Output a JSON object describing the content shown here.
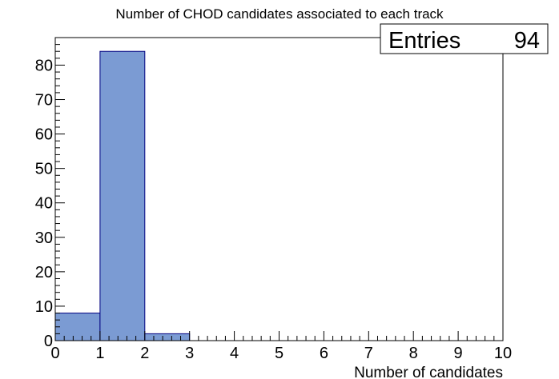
{
  "chart_data": {
    "type": "bar",
    "title": "Number of CHOD candidates associated to each track",
    "xlabel": "Number of candidates",
    "ylabel": "",
    "xlim": [
      0,
      10
    ],
    "ylim": [
      0,
      88
    ],
    "bin_edges": [
      0,
      1,
      2,
      3,
      4,
      5,
      6,
      7,
      8,
      9,
      10
    ],
    "values": [
      8,
      84,
      2,
      0,
      0,
      0,
      0,
      0,
      0,
      0
    ],
    "x_ticks": [
      "0",
      "1",
      "2",
      "3",
      "4",
      "5",
      "6",
      "7",
      "8",
      "9",
      "10"
    ],
    "y_ticks": [
      "0",
      "10",
      "20",
      "30",
      "40",
      "50",
      "60",
      "70",
      "80"
    ],
    "grid": false,
    "fill_color": "#7b9bd3",
    "line_color": "#000080"
  },
  "stats_box": {
    "label": "Entries",
    "value": "94"
  }
}
